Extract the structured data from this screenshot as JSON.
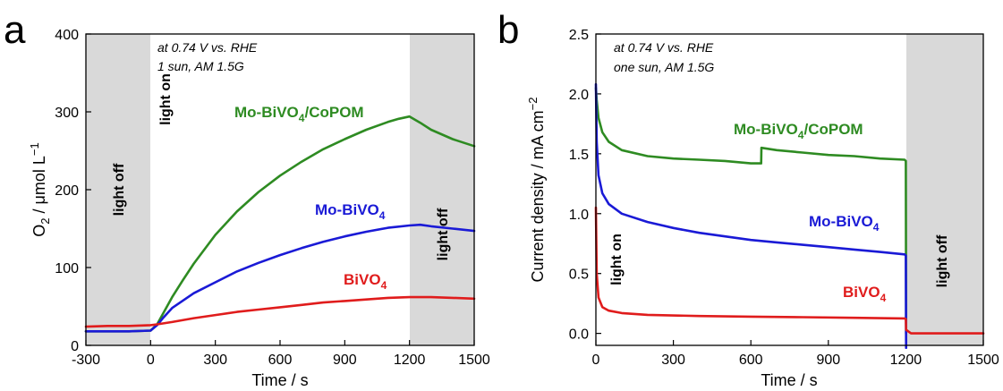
{
  "chart_data": [
    {
      "panel": "a",
      "type": "line",
      "xlabel": "Time / s",
      "ylabel": "O2 / μmol L−1",
      "xlim": [
        -300,
        1500
      ],
      "ylim": [
        0,
        400
      ],
      "xticks": [
        "-300",
        "0",
        "300",
        "600",
        "900",
        "1200",
        "1500"
      ],
      "yticks": [
        "0",
        "100",
        "200",
        "300",
        "400"
      ],
      "conditions": [
        "at 0.74 V vs. RHE",
        "1 sun, AM 1.5G"
      ],
      "regions": [
        {
          "label": "light off",
          "from": -300,
          "to": 0,
          "shaded": true
        },
        {
          "label": "light on",
          "from": 0,
          "to": 1200,
          "shaded": false
        },
        {
          "label": "light off",
          "from": 1200,
          "to": 1500,
          "shaded": true
        }
      ],
      "series": [
        {
          "name": "Mo-BiVO4/CoPOM",
          "color": "#2e8b22",
          "x": [
            -300,
            -200,
            -100,
            0,
            30,
            60,
            100,
            150,
            200,
            300,
            400,
            500,
            600,
            700,
            800,
            900,
            1000,
            1100,
            1150,
            1200,
            1250,
            1300,
            1400,
            1500
          ],
          "y": [
            18,
            18,
            18,
            19,
            27,
            42,
            62,
            84,
            105,
            142,
            172,
            197,
            218,
            236,
            252,
            265,
            277,
            287,
            291,
            294,
            286,
            277,
            265,
            256
          ]
        },
        {
          "name": "Mo-BiVO4",
          "color": "#1a1ad6",
          "x": [
            -300,
            -200,
            -100,
            0,
            30,
            60,
            100,
            200,
            300,
            400,
            500,
            600,
            700,
            800,
            900,
            1000,
            1100,
            1200,
            1250,
            1300,
            1400,
            1500
          ],
          "y": [
            18,
            18,
            18,
            19,
            26,
            36,
            48,
            67,
            81,
            95,
            106,
            116,
            125,
            133,
            140,
            146,
            151,
            154,
            155,
            153,
            150,
            147
          ]
        },
        {
          "name": "BiVO4",
          "color": "#e01c1c",
          "x": [
            -300,
            -200,
            -100,
            0,
            30,
            100,
            200,
            300,
            400,
            500,
            600,
            700,
            800,
            900,
            1000,
            1100,
            1200,
            1300,
            1400,
            1500
          ],
          "y": [
            24,
            25,
            25,
            26,
            27,
            30,
            35,
            39,
            43,
            46,
            49,
            52,
            55,
            57,
            59,
            61,
            62,
            62,
            61,
            60
          ]
        }
      ]
    },
    {
      "panel": "b",
      "type": "line",
      "xlabel": "Time / s",
      "ylabel": "Current density / mA cm−2",
      "xlim": [
        0,
        1500
      ],
      "ylim": [
        -0.1,
        2.5
      ],
      "xticks": [
        "0",
        "300",
        "600",
        "900",
        "1200",
        "1500"
      ],
      "yticks": [
        "0.0",
        "0.5",
        "1.0",
        "1.5",
        "2.0",
        "2.5"
      ],
      "conditions": [
        "at 0.74 V vs. RHE",
        "one sun, AM 1.5G"
      ],
      "regions": [
        {
          "label": "light on",
          "from": 0,
          "to": 1200,
          "shaded": false
        },
        {
          "label": "light off",
          "from": 1200,
          "to": 1500,
          "shaded": true
        }
      ],
      "series": [
        {
          "name": "Mo-BiVO4/CoPOM",
          "color": "#2e8b22",
          "x": [
            0,
            3,
            10,
            25,
            50,
            100,
            200,
            300,
            400,
            500,
            600,
            640,
            641,
            700,
            800,
            900,
            1000,
            1100,
            1195,
            1200,
            1201
          ],
          "y": [
            2.05,
            1.95,
            1.8,
            1.68,
            1.6,
            1.53,
            1.48,
            1.46,
            1.45,
            1.44,
            1.42,
            1.42,
            1.55,
            1.53,
            1.51,
            1.49,
            1.48,
            1.46,
            1.45,
            1.44,
            0.0
          ]
        },
        {
          "name": "Mo-BiVO4",
          "color": "#1a1ad6",
          "x": [
            0,
            3,
            10,
            25,
            50,
            100,
            200,
            300,
            400,
            500,
            600,
            700,
            800,
            900,
            1000,
            1100,
            1195,
            1200,
            1201
          ],
          "y": [
            2.08,
            1.6,
            1.32,
            1.17,
            1.08,
            1.0,
            0.93,
            0.88,
            0.84,
            0.81,
            0.78,
            0.76,
            0.74,
            0.72,
            0.7,
            0.68,
            0.66,
            0.65,
            -0.12
          ]
        },
        {
          "name": "BiVO4",
          "color": "#e01c1c",
          "x": [
            0,
            3,
            10,
            25,
            50,
            100,
            200,
            400,
            600,
            800,
            1000,
            1195,
            1200,
            1201,
            1220,
            1300,
            1500
          ],
          "y": [
            1.05,
            0.5,
            0.3,
            0.22,
            0.19,
            0.17,
            0.155,
            0.145,
            0.14,
            0.135,
            0.13,
            0.125,
            0.12,
            0.03,
            0.0,
            0.0,
            0.0
          ]
        }
      ]
    }
  ],
  "labels": {
    "a": {
      "letter": "a",
      "ylabel_main": "O",
      "ylabel_sub": "2",
      "ylabel_rest": " / μmol L",
      "ylabel_sup": "−1",
      "cond1": "at 0.74 V vs. RHE",
      "cond2": "1 sun, AM 1.5G",
      "s1_main": "Mo-BiVO",
      "s1_sub": "4",
      "s1_rest": "/CoPOM",
      "s2_main": "Mo-BiVO",
      "s2_sub": "4",
      "s3_main": "BiVO",
      "s3_sub": "4",
      "region_off_left": "light off",
      "region_on": "light on",
      "region_off_right": "light off",
      "xlabel": "Time / s"
    },
    "b": {
      "letter": "b",
      "ylabel_main": "Current density / mA cm",
      "ylabel_sup": "−2",
      "cond1": "at 0.74 V vs. RHE",
      "cond2": "one sun, AM 1.5G",
      "s1_main": "Mo-BiVO",
      "s1_sub": "4",
      "s1_rest": "/CoPOM",
      "s2_main": "Mo-BiVO",
      "s2_sub": "4",
      "s3_main": "BiVO",
      "s3_sub": "4",
      "region_on": "light on",
      "region_off": "light off",
      "xlabel": "Time / s"
    }
  },
  "colors": {
    "shade": "#d9d9d9",
    "green": "#2e8b22",
    "blue": "#1a1ad6",
    "red": "#e01c1c"
  }
}
